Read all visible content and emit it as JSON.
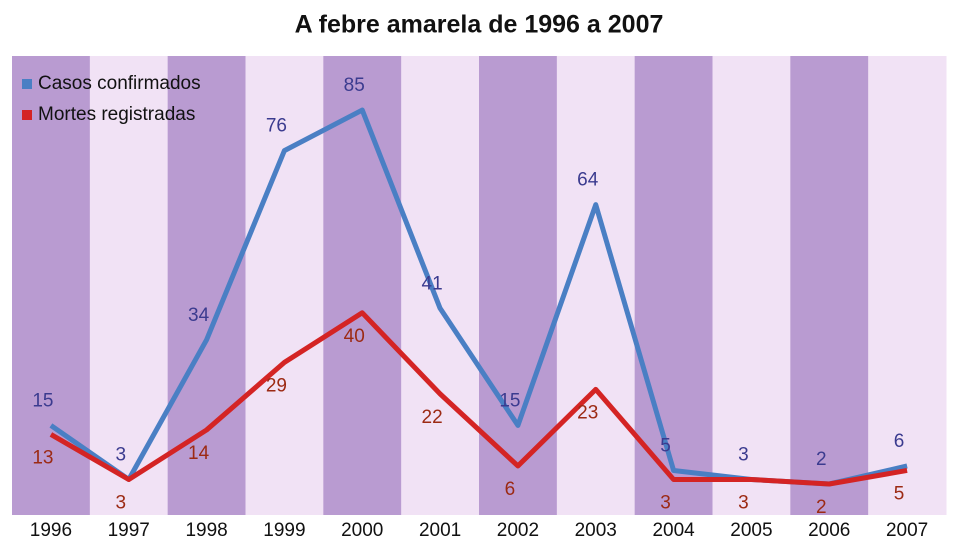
{
  "chart_data": {
    "type": "line",
    "title": "A febre amarela de 1996 a 2007",
    "categories": [
      "1996",
      "1997",
      "1998",
      "1999",
      "2000",
      "2001",
      "2002",
      "2003",
      "2004",
      "2005",
      "2006",
      "2007"
    ],
    "series": [
      {
        "name": "Casos confirmados",
        "color": "#4a7fc4",
        "label_color": "#3b3b8f",
        "values": [
          15,
          3,
          34,
          76,
          85,
          41,
          15,
          64,
          5,
          3,
          2,
          6
        ]
      },
      {
        "name": "Mortes registradas",
        "color": "#d42424",
        "label_color": "#9c2a14",
        "values": [
          13,
          3,
          14,
          29,
          40,
          22,
          6,
          23,
          3,
          3,
          2,
          5
        ]
      }
    ],
    "ylim": [
      0,
      97
    ],
    "legend": "upper left",
    "stripe_colors": [
      "#b99bd1",
      "#f1e2f5"
    ]
  }
}
